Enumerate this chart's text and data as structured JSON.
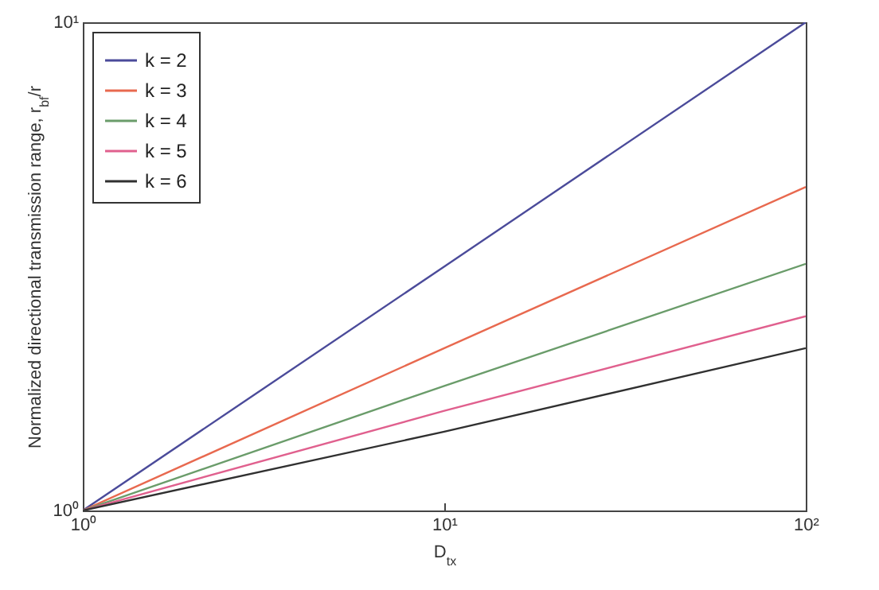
{
  "chart_data": {
    "type": "line",
    "xlabel": "D$_{tx}$",
    "ylabel": "Normalized directional transmission range, r$_{bf}$/r",
    "x": [
      1,
      10,
      100
    ],
    "log": "xy",
    "xlim": [
      1,
      100
    ],
    "ylim": [
      1,
      10
    ],
    "xticks": [
      {
        "value": 1,
        "label": "10⁰"
      },
      {
        "value": 10,
        "label": "10¹"
      },
      {
        "value": 100,
        "label": "10²"
      }
    ],
    "yticks": [
      {
        "value": 1,
        "label": "10⁰"
      },
      {
        "value": 10,
        "label": "10¹"
      }
    ],
    "grid": false,
    "legend": "top left",
    "marker": "none",
    "line_style": "solid",
    "series": [
      {
        "name": "k = 2",
        "color": "#4b4b9a",
        "values": [
          1,
          3.16,
          10
        ]
      },
      {
        "name": "k = 3",
        "color": "#e8694f",
        "values": [
          1,
          2.15,
          4.6
        ]
      },
      {
        "name": "k = 4",
        "color": "#6a9c6a",
        "values": [
          1,
          1.8,
          3.2
        ]
      },
      {
        "name": "k = 5",
        "color": "#e0608e",
        "values": [
          1,
          1.6,
          2.5
        ]
      },
      {
        "name": "k = 6",
        "color": "#303030",
        "values": [
          1,
          1.45,
          2.15
        ]
      }
    ]
  }
}
